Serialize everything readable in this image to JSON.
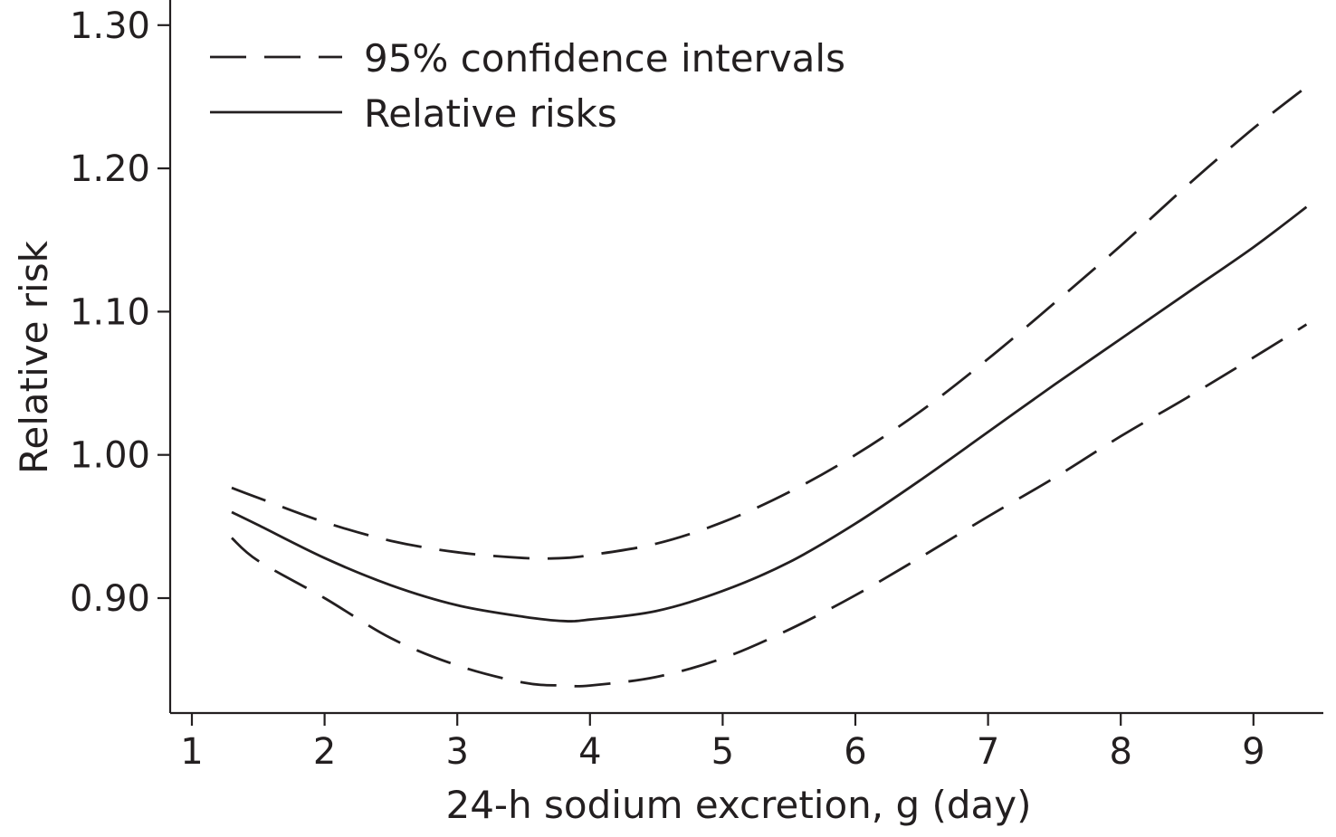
{
  "chart_data": {
    "type": "line",
    "title": "",
    "xlabel": "24-h sodium excretion, g (day)",
    "ylabel": "Relative risk",
    "xlim": [
      0.85,
      9.5
    ],
    "ylim": [
      0.82,
      1.315
    ],
    "x_ticks": [
      1,
      2,
      3,
      4,
      5,
      6,
      7,
      8,
      9
    ],
    "x_tick_labels": [
      "1",
      "2",
      "3",
      "4",
      "5",
      "6",
      "7",
      "8",
      "9"
    ],
    "y_ticks": [
      0.9,
      1.0,
      1.1,
      1.2,
      1.3
    ],
    "y_tick_labels": [
      "0.90",
      "1.00",
      "1.10",
      "1.20",
      "1.30"
    ],
    "grid": false,
    "legend": {
      "placement": "top-left",
      "entries": [
        {
          "label": "95% confidence intervals",
          "style": "dashed"
        },
        {
          "label": "Relative risks",
          "style": "solid"
        }
      ]
    },
    "line_color": "#231f20",
    "x": [
      1.3,
      1.5,
      2.0,
      2.5,
      3.0,
      3.5,
      3.8,
      4.0,
      4.5,
      5.0,
      5.5,
      6.0,
      6.5,
      7.0,
      7.5,
      8.0,
      8.5,
      9.0,
      9.4
    ],
    "series": [
      {
        "name": "Relative risks",
        "style": "solid",
        "values": [
          0.96,
          0.951,
          0.928,
          0.909,
          0.895,
          0.887,
          0.884,
          0.885,
          0.891,
          0.905,
          0.925,
          0.952,
          0.983,
          1.016,
          1.049,
          1.081,
          1.113,
          1.145,
          1.173
        ]
      },
      {
        "name": "95% confidence intervals",
        "style": "dashed",
        "values": [
          0.942,
          0.926,
          0.9,
          0.872,
          0.853,
          0.841,
          0.839,
          0.839,
          0.845,
          0.858,
          0.878,
          0.902,
          0.929,
          0.957,
          0.984,
          1.013,
          1.04,
          1.068,
          1.091
        ]
      },
      {
        "name": "95% confidence intervals",
        "style": "dashed",
        "values": [
          0.977,
          0.97,
          0.953,
          0.94,
          0.932,
          0.928,
          0.928,
          0.93,
          0.938,
          0.953,
          0.974,
          1.0,
          1.031,
          1.067,
          1.106,
          1.146,
          1.188,
          1.228,
          1.257
        ]
      }
    ]
  }
}
